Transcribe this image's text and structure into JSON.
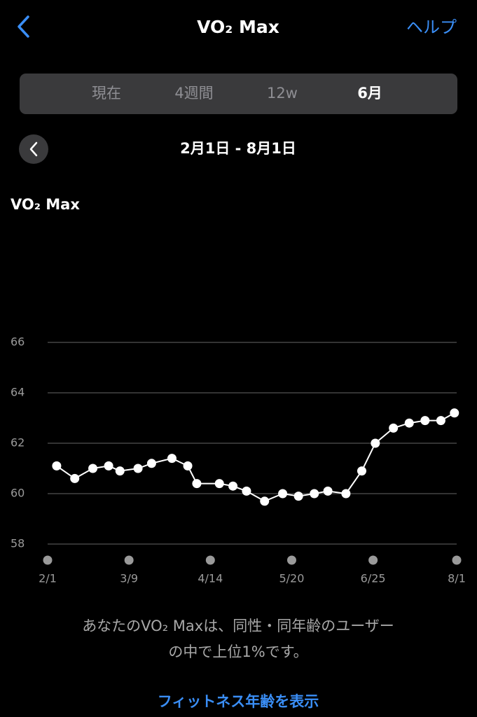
{
  "header": {
    "title": "VO₂ Max",
    "help": "ヘルプ"
  },
  "segments": {
    "items": [
      "現在",
      "4週間",
      "12w",
      "6月"
    ],
    "selected": 3
  },
  "date_range": "2月1日 - 8月1日",
  "chart_data": {
    "type": "line",
    "title": "VO₂ Max",
    "x": [
      "2/5",
      "2/13",
      "2/21",
      "2/28",
      "3/5",
      "3/13",
      "3/19",
      "3/28",
      "4/4",
      "4/8",
      "4/18",
      "4/24",
      "4/30",
      "5/8",
      "5/16",
      "5/23",
      "5/30",
      "6/5",
      "6/13",
      "6/20",
      "6/26",
      "7/4",
      "7/11",
      "7/18",
      "7/25",
      "7/31"
    ],
    "series": [
      {
        "color": "#ffffff",
        "values": [
          61.1,
          60.6,
          61.0,
          61.1,
          60.9,
          61.0,
          61.2,
          61.4,
          61.1,
          60.4,
          60.4,
          60.3,
          60.1,
          59.7,
          60.0,
          59.9,
          60.0,
          60.1,
          60.0,
          60.9,
          62.0,
          62.6,
          62.8,
          62.9,
          62.9,
          63.2
        ]
      }
    ],
    "xlim": [
      "2/1",
      "8/1"
    ],
    "xticks": [
      "2/1",
      "3/9",
      "4/14",
      "5/20",
      "6/25",
      "8/1"
    ],
    "ylim": [
      58,
      66
    ],
    "yticks": [
      58,
      60,
      62,
      64,
      66
    ],
    "grid": true
  },
  "summary": [
    "あなたのVO₂ Maxは、同性・同年齢のユーザー",
    "の中で上位1%です。"
  ],
  "link": "フィットネス年齢を表示"
}
